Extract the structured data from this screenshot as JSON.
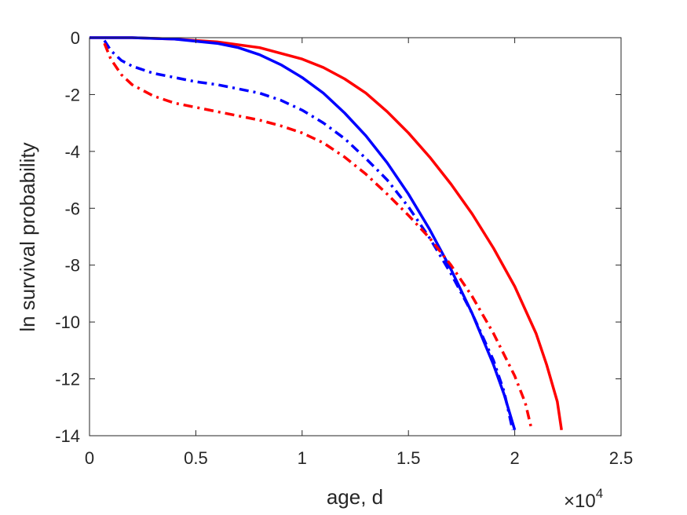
{
  "chart_data": {
    "type": "line",
    "title": "",
    "xlabel": "age, d",
    "ylabel": "ln survival probability",
    "x_exponent_label": {
      "base": "×10",
      "exponent": "4"
    },
    "xlim": [
      0,
      2.5
    ],
    "ylim": [
      -14,
      0
    ],
    "x_ticks": [
      0,
      0.5,
      1,
      1.5,
      2,
      2.5
    ],
    "x_tick_labels": [
      "0",
      "0.5",
      "1",
      "1.5",
      "2",
      "2.5"
    ],
    "y_ticks": [
      0,
      -2,
      -4,
      -6,
      -8,
      -10,
      -12,
      -14
    ],
    "y_tick_labels": [
      "0",
      "-2",
      "-4",
      "-6",
      "-8",
      "-10",
      "-12",
      "-14"
    ],
    "grid": false,
    "legend": "none",
    "series": [
      {
        "color": "#ff0000",
        "style": "solid",
        "x": [
          0,
          0.2,
          0.4,
          0.6,
          0.8,
          1.0,
          1.1,
          1.2,
          1.3,
          1.4,
          1.5,
          1.6,
          1.7,
          1.8,
          1.9,
          2.0,
          2.1,
          2.15,
          2.2,
          2.22
        ],
        "y": [
          0,
          0,
          -0.05,
          -0.15,
          -0.35,
          -0.75,
          -1.05,
          -1.45,
          -1.95,
          -2.6,
          -3.35,
          -4.2,
          -5.15,
          -6.2,
          -7.4,
          -8.75,
          -10.4,
          -11.5,
          -12.8,
          -13.8
        ]
      },
      {
        "color": "#0000ff",
        "style": "solid",
        "x": [
          0,
          0.2,
          0.4,
          0.6,
          0.7,
          0.8,
          0.9,
          1.0,
          1.1,
          1.2,
          1.3,
          1.4,
          1.5,
          1.6,
          1.7,
          1.8,
          1.9,
          1.95,
          2.0
        ],
        "y": [
          0,
          0,
          -0.05,
          -0.2,
          -0.35,
          -0.6,
          -0.95,
          -1.4,
          -1.95,
          -2.65,
          -3.45,
          -4.4,
          -5.5,
          -6.75,
          -8.15,
          -9.7,
          -11.5,
          -12.55,
          -13.8
        ]
      },
      {
        "color": "#0000ff",
        "style": "dashdot",
        "x": [
          0.07,
          0.1,
          0.15,
          0.2,
          0.3,
          0.4,
          0.5,
          0.6,
          0.7,
          0.8,
          0.9,
          1.0,
          1.1,
          1.2,
          1.3,
          1.4,
          1.5,
          1.6,
          1.7,
          1.8,
          1.9,
          1.95,
          1.99
        ],
        "y": [
          -0.1,
          -0.45,
          -0.8,
          -1.0,
          -1.25,
          -1.4,
          -1.55,
          -1.65,
          -1.8,
          -1.95,
          -2.2,
          -2.55,
          -3.0,
          -3.55,
          -4.25,
          -5.0,
          -5.95,
          -7.05,
          -8.3,
          -9.7,
          -11.35,
          -12.45,
          -13.8
        ]
      },
      {
        "color": "#ff0000",
        "style": "dashdot",
        "x": [
          0.07,
          0.1,
          0.15,
          0.2,
          0.3,
          0.4,
          0.5,
          0.6,
          0.7,
          0.8,
          0.9,
          1.0,
          1.1,
          1.2,
          1.3,
          1.4,
          1.5,
          1.6,
          1.7,
          1.8,
          1.9,
          2.0,
          2.05,
          2.08
        ],
        "y": [
          -0.2,
          -0.75,
          -1.3,
          -1.65,
          -2.05,
          -2.3,
          -2.45,
          -2.6,
          -2.75,
          -2.9,
          -3.1,
          -3.35,
          -3.7,
          -4.2,
          -4.8,
          -5.5,
          -6.25,
          -7.05,
          -8.0,
          -9.1,
          -10.4,
          -11.9,
          -12.85,
          -13.8
        ]
      }
    ]
  }
}
